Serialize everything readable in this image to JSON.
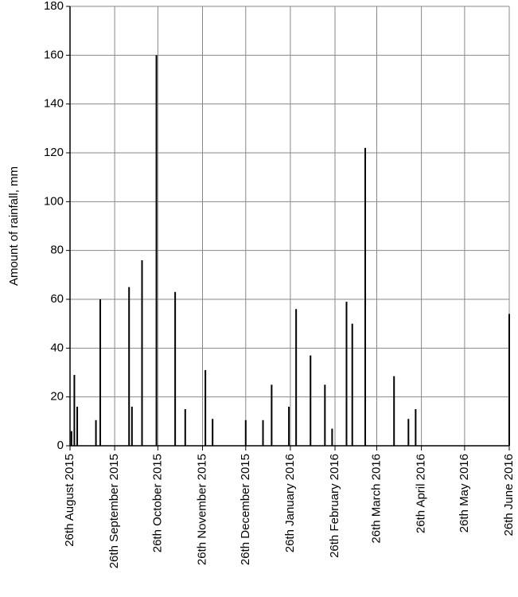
{
  "chart_data": {
    "type": "bar",
    "y_label": "Amount of rainfall, mm",
    "x": [
      "2015-08-27",
      "2015-08-29",
      "2015-08-31",
      "2015-09-13",
      "2015-09-16",
      "2015-10-06",
      "2015-10-08",
      "2015-10-15",
      "2015-10-25",
      "2015-11-07",
      "2015-11-14",
      "2015-11-28",
      "2015-12-03",
      "2015-12-26",
      "2016-01-07",
      "2016-01-13",
      "2016-01-25",
      "2016-01-30",
      "2016-02-09",
      "2016-02-19",
      "2016-02-24",
      "2016-03-05",
      "2016-03-09",
      "2016-03-18",
      "2016-04-07",
      "2016-04-17",
      "2016-04-22",
      "2016-06-26"
    ],
    "values": [
      6,
      29,
      16,
      10.5,
      60,
      65,
      16,
      76,
      160,
      63,
      15,
      31,
      11,
      10.5,
      10.5,
      25,
      16,
      56,
      37,
      25,
      7,
      59,
      50,
      122,
      28.5,
      11,
      15,
      54
    ],
    "color": "#000000",
    "xlim": [
      "2015-08-26",
      "2016-06-26"
    ],
    "xticks": [
      {
        "value": "2015-08-26",
        "label": "26th August 2015"
      },
      {
        "value": "2015-09-26",
        "label": "26th September 2015"
      },
      {
        "value": "2015-10-26",
        "label": "26th October 2015"
      },
      {
        "value": "2015-11-26",
        "label": "26th November 2015"
      },
      {
        "value": "2015-12-26",
        "label": "26th December 2015"
      },
      {
        "value": "2016-01-26",
        "label": "26th January 2016"
      },
      {
        "value": "2016-02-26",
        "label": "26th February 2016"
      },
      {
        "value": "2016-03-26",
        "label": "26th March 2016"
      },
      {
        "value": "2016-04-26",
        "label": "26th April 2016"
      },
      {
        "value": "2016-05-26",
        "label": "26th May 2016"
      },
      {
        "value": "2016-06-26",
        "label": "26th June 2016"
      }
    ],
    "ylim": [
      0,
      180
    ],
    "yticks": [
      0,
      20,
      40,
      60,
      80,
      100,
      120,
      140,
      160,
      180
    ],
    "grid": true
  }
}
